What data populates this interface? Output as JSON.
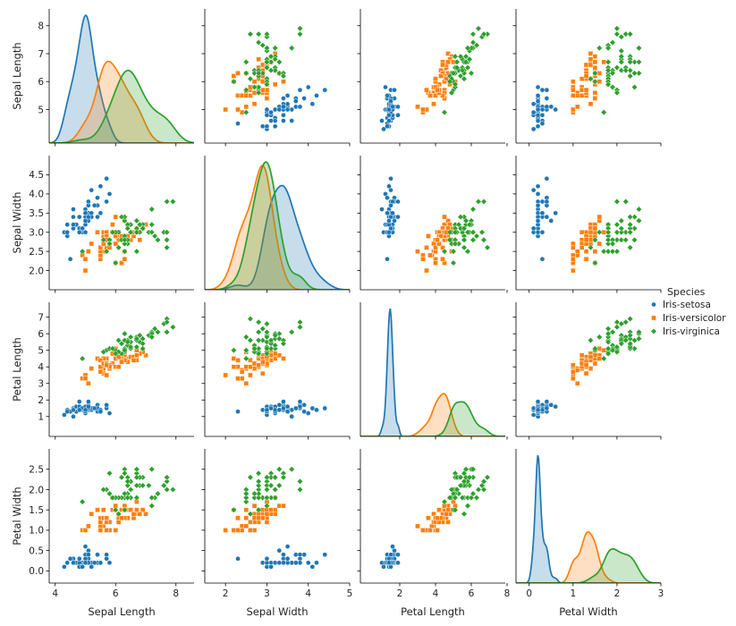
{
  "chart_data": {
    "type": "pairplot",
    "variables": [
      "Sepal Length",
      "Sepal Width",
      "Petal Length",
      "Petal Width"
    ],
    "axis_ranges": {
      "Sepal Length": [
        3.8,
        8.6
      ],
      "Sepal Width": [
        1.5,
        5.0
      ],
      "Petal Length": [
        -0.2,
        7.9
      ],
      "Petal Width": [
        -0.3,
        3.0
      ]
    },
    "ticks": {
      "Sepal Length": [
        4,
        6,
        8
      ],
      "Sepal Width": [
        2,
        3,
        4,
        5
      ],
      "Petal Length": [
        2,
        4,
        6,
        8
      ],
      "Petal Width": [
        0,
        1,
        2,
        3
      ]
    },
    "row_ticks": {
      "Sepal Length": [
        5,
        6,
        7,
        8
      ],
      "Sepal Width": [
        2.0,
        2.5,
        3.0,
        3.5,
        4.0,
        4.5
      ],
      "Petal Length": [
        1,
        2,
        3,
        4,
        5,
        6,
        7
      ],
      "Petal Width": [
        0.0,
        0.5,
        1.0,
        1.5,
        2.0,
        2.5
      ]
    },
    "row_tick_labels": {
      "Sepal Length": [
        "5",
        "6",
        "7",
        "8"
      ],
      "Sepal Width": [
        "2.0",
        "2.5",
        "3.0",
        "3.5",
        "4.0",
        "4.5"
      ],
      "Petal Length": [
        "1",
        "2",
        "3",
        "4",
        "5",
        "6",
        "7"
      ],
      "Petal Width": [
        "0.0",
        "0.5",
        "1.0",
        "1.5",
        "2.0",
        "2.5"
      ]
    },
    "legend": {
      "title": "Species",
      "placement": "right",
      "entries": [
        "Iris-setosa",
        "Iris-versicolor",
        "Iris-virginica"
      ]
    },
    "diagonal": "kde",
    "species": [
      {
        "name": "Iris-setosa",
        "color": "#1f77b4",
        "marker": "circle",
        "rows": [
          [
            5.1,
            3.5,
            1.4,
            0.2
          ],
          [
            4.9,
            3.0,
            1.4,
            0.2
          ],
          [
            4.7,
            3.2,
            1.3,
            0.2
          ],
          [
            4.6,
            3.1,
            1.5,
            0.2
          ],
          [
            5.0,
            3.6,
            1.4,
            0.2
          ],
          [
            5.4,
            3.9,
            1.7,
            0.4
          ],
          [
            4.6,
            3.4,
            1.4,
            0.3
          ],
          [
            5.0,
            3.4,
            1.5,
            0.2
          ],
          [
            4.4,
            2.9,
            1.4,
            0.2
          ],
          [
            4.9,
            3.1,
            1.5,
            0.1
          ],
          [
            5.4,
            3.7,
            1.5,
            0.2
          ],
          [
            4.8,
            3.4,
            1.6,
            0.2
          ],
          [
            4.8,
            3.0,
            1.4,
            0.1
          ],
          [
            4.3,
            3.0,
            1.1,
            0.1
          ],
          [
            5.8,
            4.0,
            1.2,
            0.2
          ],
          [
            5.7,
            4.4,
            1.5,
            0.4
          ],
          [
            5.4,
            3.9,
            1.3,
            0.4
          ],
          [
            5.1,
            3.5,
            1.4,
            0.3
          ],
          [
            5.7,
            3.8,
            1.7,
            0.3
          ],
          [
            5.1,
            3.8,
            1.5,
            0.3
          ],
          [
            5.4,
            3.4,
            1.7,
            0.2
          ],
          [
            5.1,
            3.7,
            1.5,
            0.4
          ],
          [
            4.6,
            3.6,
            1.0,
            0.2
          ],
          [
            5.1,
            3.3,
            1.7,
            0.5
          ],
          [
            4.8,
            3.4,
            1.9,
            0.2
          ],
          [
            5.0,
            3.0,
            1.6,
            0.2
          ],
          [
            5.0,
            3.4,
            1.6,
            0.4
          ],
          [
            5.2,
            3.5,
            1.5,
            0.2
          ],
          [
            5.2,
            3.4,
            1.4,
            0.2
          ],
          [
            4.7,
            3.2,
            1.6,
            0.2
          ],
          [
            4.8,
            3.1,
            1.6,
            0.2
          ],
          [
            5.4,
            3.4,
            1.5,
            0.4
          ],
          [
            5.2,
            4.1,
            1.5,
            0.1
          ],
          [
            5.5,
            4.2,
            1.4,
            0.2
          ],
          [
            4.9,
            3.1,
            1.5,
            0.1
          ],
          [
            5.0,
            3.2,
            1.2,
            0.2
          ],
          [
            5.5,
            3.5,
            1.3,
            0.2
          ],
          [
            4.9,
            3.1,
            1.5,
            0.1
          ],
          [
            4.4,
            3.0,
            1.3,
            0.2
          ],
          [
            5.1,
            3.4,
            1.5,
            0.2
          ],
          [
            5.0,
            3.5,
            1.3,
            0.3
          ],
          [
            4.5,
            2.3,
            1.3,
            0.3
          ],
          [
            4.4,
            3.2,
            1.3,
            0.2
          ],
          [
            5.0,
            3.5,
            1.6,
            0.6
          ],
          [
            5.1,
            3.8,
            1.9,
            0.4
          ],
          [
            4.8,
            3.0,
            1.4,
            0.3
          ],
          [
            5.1,
            3.8,
            1.6,
            0.2
          ],
          [
            4.6,
            3.2,
            1.4,
            0.2
          ],
          [
            5.3,
            3.7,
            1.5,
            0.2
          ],
          [
            5.0,
            3.3,
            1.4,
            0.2
          ]
        ]
      },
      {
        "name": "Iris-versicolor",
        "color": "#ff7f0e",
        "marker": "square",
        "rows": [
          [
            7.0,
            3.2,
            4.7,
            1.4
          ],
          [
            6.4,
            3.2,
            4.5,
            1.5
          ],
          [
            6.9,
            3.1,
            4.9,
            1.5
          ],
          [
            5.5,
            2.3,
            4.0,
            1.3
          ],
          [
            6.5,
            2.8,
            4.6,
            1.5
          ],
          [
            5.7,
            2.8,
            4.5,
            1.3
          ],
          [
            6.3,
            3.3,
            4.7,
            1.6
          ],
          [
            4.9,
            2.4,
            3.3,
            1.0
          ],
          [
            6.6,
            2.9,
            4.6,
            1.3
          ],
          [
            5.2,
            2.7,
            3.9,
            1.4
          ],
          [
            5.0,
            2.0,
            3.5,
            1.0
          ],
          [
            5.9,
            3.0,
            4.2,
            1.5
          ],
          [
            6.0,
            2.2,
            4.0,
            1.0
          ],
          [
            6.1,
            2.9,
            4.7,
            1.4
          ],
          [
            5.6,
            2.9,
            3.6,
            1.3
          ],
          [
            6.7,
            3.1,
            4.4,
            1.4
          ],
          [
            5.6,
            3.0,
            4.5,
            1.5
          ],
          [
            5.8,
            2.7,
            4.1,
            1.0
          ],
          [
            6.2,
            2.2,
            4.5,
            1.5
          ],
          [
            5.6,
            2.5,
            3.9,
            1.1
          ],
          [
            5.9,
            3.2,
            4.8,
            1.8
          ],
          [
            6.1,
            2.8,
            4.0,
            1.3
          ],
          [
            6.3,
            2.5,
            4.9,
            1.5
          ],
          [
            6.1,
            2.8,
            4.7,
            1.2
          ],
          [
            6.4,
            2.9,
            4.3,
            1.3
          ],
          [
            6.6,
            3.0,
            4.4,
            1.4
          ],
          [
            6.8,
            2.8,
            4.8,
            1.4
          ],
          [
            6.7,
            3.0,
            5.0,
            1.7
          ],
          [
            6.0,
            2.9,
            4.5,
            1.5
          ],
          [
            5.7,
            2.6,
            3.5,
            1.0
          ],
          [
            5.5,
            2.4,
            3.8,
            1.1
          ],
          [
            5.5,
            2.4,
            3.7,
            1.0
          ],
          [
            5.8,
            2.7,
            3.9,
            1.2
          ],
          [
            6.0,
            2.7,
            5.1,
            1.6
          ],
          [
            5.4,
            3.0,
            4.5,
            1.5
          ],
          [
            6.0,
            3.4,
            4.5,
            1.6
          ],
          [
            6.7,
            3.1,
            4.7,
            1.5
          ],
          [
            6.3,
            2.3,
            4.4,
            1.3
          ],
          [
            5.6,
            3.0,
            4.1,
            1.3
          ],
          [
            5.5,
            2.5,
            4.0,
            1.3
          ],
          [
            5.5,
            2.6,
            4.4,
            1.2
          ],
          [
            6.1,
            3.0,
            4.6,
            1.4
          ],
          [
            5.8,
            2.6,
            4.0,
            1.2
          ],
          [
            5.0,
            2.3,
            3.3,
            1.0
          ],
          [
            5.6,
            2.7,
            4.2,
            1.3
          ],
          [
            5.7,
            3.0,
            4.2,
            1.2
          ],
          [
            5.7,
            2.9,
            4.2,
            1.3
          ],
          [
            6.2,
            2.9,
            4.3,
            1.3
          ],
          [
            5.1,
            2.5,
            3.0,
            1.1
          ],
          [
            5.7,
            2.8,
            4.1,
            1.3
          ]
        ]
      },
      {
        "name": "Iris-virginica",
        "color": "#2ca02c",
        "marker": "diamond",
        "rows": [
          [
            6.3,
            3.3,
            6.0,
            2.5
          ],
          [
            5.8,
            2.7,
            5.1,
            1.9
          ],
          [
            7.1,
            3.0,
            5.9,
            2.1
          ],
          [
            6.3,
            2.9,
            5.6,
            1.8
          ],
          [
            6.5,
            3.0,
            5.8,
            2.2
          ],
          [
            7.6,
            3.0,
            6.6,
            2.1
          ],
          [
            4.9,
            2.5,
            4.5,
            1.7
          ],
          [
            7.3,
            2.9,
            6.3,
            1.8
          ],
          [
            6.7,
            2.5,
            5.8,
            1.8
          ],
          [
            7.2,
            3.6,
            6.1,
            2.5
          ],
          [
            6.5,
            3.2,
            5.1,
            2.0
          ],
          [
            6.4,
            2.7,
            5.3,
            1.9
          ],
          [
            6.8,
            3.0,
            5.5,
            2.1
          ],
          [
            5.7,
            2.5,
            5.0,
            2.0
          ],
          [
            5.8,
            2.8,
            5.1,
            2.4
          ],
          [
            6.4,
            3.2,
            5.3,
            2.3
          ],
          [
            6.5,
            3.0,
            5.5,
            1.8
          ],
          [
            7.7,
            3.8,
            6.7,
            2.2
          ],
          [
            7.7,
            2.6,
            6.9,
            2.3
          ],
          [
            6.0,
            2.2,
            5.0,
            1.5
          ],
          [
            6.9,
            3.2,
            5.7,
            2.3
          ],
          [
            5.6,
            2.8,
            4.9,
            2.0
          ],
          [
            7.7,
            2.8,
            6.7,
            2.0
          ],
          [
            6.3,
            2.7,
            4.9,
            1.8
          ],
          [
            6.7,
            3.3,
            5.7,
            2.1
          ],
          [
            7.2,
            3.2,
            6.0,
            1.8
          ],
          [
            6.2,
            2.8,
            4.8,
            1.8
          ],
          [
            6.1,
            3.0,
            4.9,
            1.8
          ],
          [
            6.4,
            2.8,
            5.6,
            2.1
          ],
          [
            7.2,
            3.0,
            5.8,
            1.6
          ],
          [
            7.4,
            2.8,
            6.1,
            1.9
          ],
          [
            7.9,
            3.8,
            6.4,
            2.0
          ],
          [
            6.4,
            2.8,
            5.6,
            2.2
          ],
          [
            6.3,
            2.8,
            5.1,
            1.5
          ],
          [
            6.1,
            2.6,
            5.6,
            1.4
          ],
          [
            7.7,
            3.0,
            6.1,
            2.3
          ],
          [
            6.3,
            3.4,
            5.6,
            2.4
          ],
          [
            6.4,
            3.1,
            5.5,
            1.8
          ],
          [
            6.0,
            3.0,
            4.8,
            1.8
          ],
          [
            6.9,
            3.1,
            5.4,
            2.1
          ],
          [
            6.7,
            3.1,
            5.6,
            2.4
          ],
          [
            6.9,
            3.1,
            5.1,
            2.3
          ],
          [
            5.8,
            2.7,
            5.1,
            1.9
          ],
          [
            6.8,
            3.2,
            5.9,
            2.3
          ],
          [
            6.7,
            3.3,
            5.7,
            2.5
          ],
          [
            6.7,
            3.0,
            5.2,
            2.3
          ],
          [
            6.3,
            2.5,
            5.0,
            1.9
          ],
          [
            6.5,
            3.0,
            5.2,
            2.0
          ],
          [
            6.2,
            3.4,
            5.4,
            2.3
          ],
          [
            5.9,
            3.0,
            5.1,
            1.8
          ]
        ]
      }
    ]
  }
}
